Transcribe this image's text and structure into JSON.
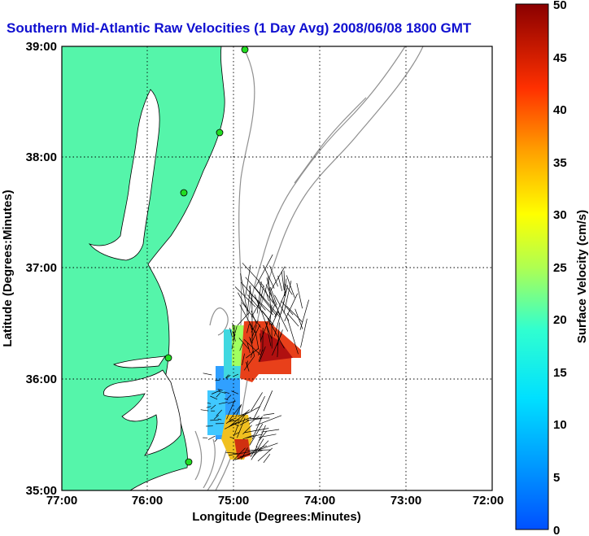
{
  "title": "Southern Mid-Atlantic Raw Velocities (1 Day Avg) 2008/06/08 1800 GMT",
  "x_axis": {
    "label": "Longitude (Degrees:Minutes)",
    "ticks": [
      "77:00",
      "76:00",
      "75:00",
      "74:00",
      "73:00",
      "72:00"
    ]
  },
  "y_axis": {
    "label": "Latitude (Degrees:Minutes)",
    "ticks": [
      "39:00",
      "38:00",
      "37:00",
      "36:00",
      "35:00"
    ]
  },
  "colorbar": {
    "label": "Surface Velocity (cm/s)",
    "ticks": [
      "50",
      "45",
      "40",
      "35",
      "30",
      "25",
      "20",
      "15",
      "10",
      "5",
      "0"
    ]
  },
  "colors": {
    "land": "#55f5aa",
    "water": "#ffffff",
    "bathymetry": "#909090",
    "title": "#1010d0",
    "station": "#22dd22"
  },
  "map_extent": {
    "lon_min": -77,
    "lon_max": -72,
    "lat_min": 35,
    "lat_max": 39
  },
  "grid": true
}
